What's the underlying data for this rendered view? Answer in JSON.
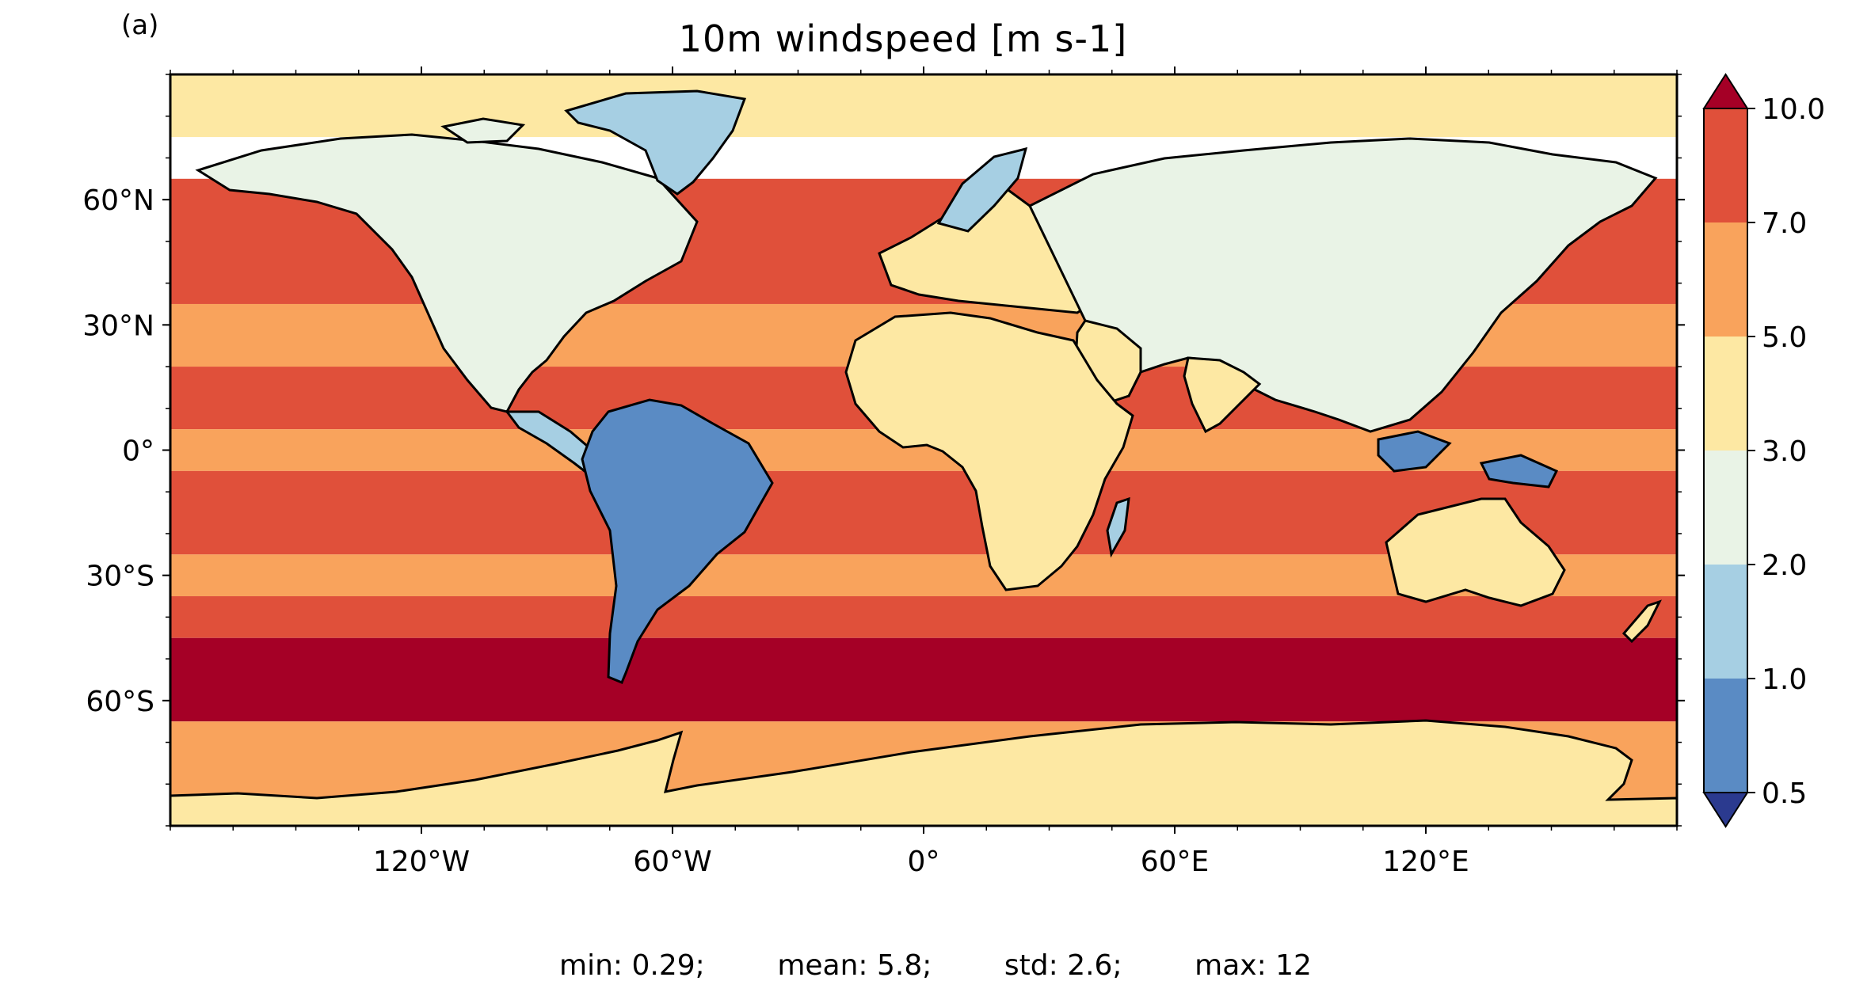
{
  "panel_label": "(a)",
  "title": "10m windspeed [m s-1]",
  "stats": {
    "min_label": "min: 0.29;",
    "mean_label": "mean: 5.8;",
    "std_label": "std: 2.6;",
    "max_label": "max: 12"
  },
  "map": {
    "projection": "PlateCarree",
    "lon_range": [
      -180,
      180
    ],
    "lat_range": [
      -90,
      90
    ],
    "lat_ticks": [
      {
        "value": 60,
        "label": "60°N"
      },
      {
        "value": 30,
        "label": "30°N"
      },
      {
        "value": 0,
        "label": "0°"
      },
      {
        "value": -30,
        "label": "30°S"
      },
      {
        "value": -60,
        "label": "60°S"
      }
    ],
    "lon_ticks": [
      {
        "value": -120,
        "label": "120°W"
      },
      {
        "value": -60,
        "label": "60°W"
      },
      {
        "value": 0,
        "label": "0°"
      },
      {
        "value": 60,
        "label": "60°E"
      },
      {
        "value": 120,
        "label": "120°E"
      }
    ]
  },
  "colorbar": {
    "levels": [
      0.5,
      1.0,
      2.0,
      3.0,
      5.0,
      7.0,
      10.0
    ],
    "tick_labels": [
      "0.5",
      "1.0",
      "2.0",
      "3.0",
      "5.0",
      "7.0",
      "10.0"
    ],
    "colors": [
      "#5a8bc4",
      "#a6cfe3",
      "#e9f3e6",
      "#fde8a3",
      "#f9a35c",
      "#e0503a"
    ],
    "under_color": "#2b3a8f",
    "over_color": "#a50026",
    "extend": "both"
  },
  "chart_data": {
    "type": "heatmap",
    "title": "10m windspeed [m s-1]",
    "xlabel": "",
    "ylabel": "",
    "x_ticks": [
      "120°W",
      "60°W",
      "0°",
      "60°E",
      "120°E"
    ],
    "y_ticks": [
      "60°N",
      "30°N",
      "0°",
      "30°S",
      "60°S"
    ],
    "color_levels": [
      0.5,
      1.0,
      2.0,
      3.0,
      5.0,
      7.0,
      10.0
    ],
    "zonal_bands_ocean": [
      {
        "lat_range": [
          75,
          90
        ],
        "value": 4
      },
      {
        "lat_range": [
          35,
          65
        ],
        "value": 8
      },
      {
        "lat_range": [
          20,
          35
        ],
        "value": 6
      },
      {
        "lat_range": [
          5,
          20
        ],
        "value": 8
      },
      {
        "lat_range": [
          -5,
          5
        ],
        "value": 5
      },
      {
        "lat_range": [
          -25,
          -5
        ],
        "value": 8
      },
      {
        "lat_range": [
          -35,
          -25
        ],
        "value": 6
      },
      {
        "lat_range": [
          -45,
          -35
        ],
        "value": 8
      },
      {
        "lat_range": [
          -65,
          -45
        ],
        "value": 11
      },
      {
        "lat_range": [
          -90,
          -65
        ],
        "value": 5
      }
    ],
    "stats": {
      "min": 0.29,
      "mean": 5.8,
      "std": 2.6,
      "max": 12
    }
  }
}
